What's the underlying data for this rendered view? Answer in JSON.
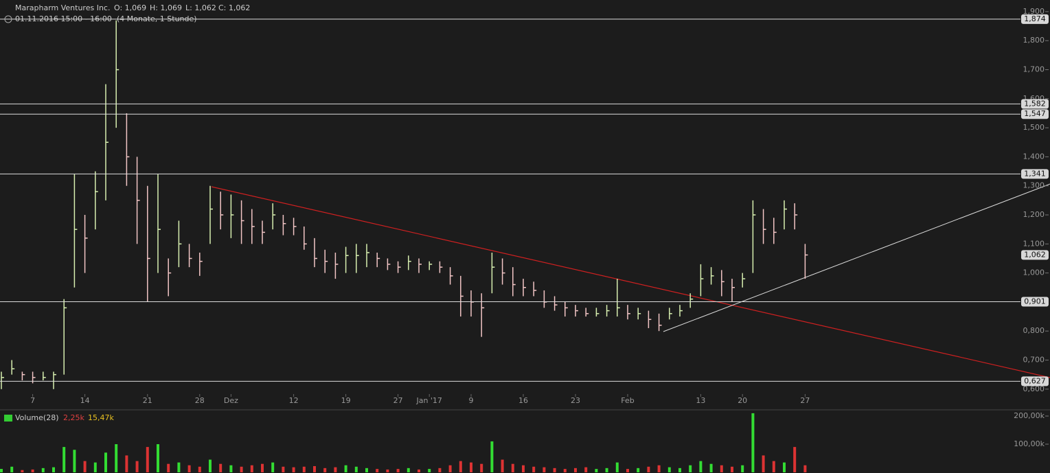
{
  "chart_data": [
    {
      "type": "hlc",
      "title": "Marapharm Ventures Inc.",
      "ohlc_text": [
        "O: 1,069",
        "H: 1,069",
        "L: 1,062",
        "C: 1,062"
      ],
      "subtitle": "01.11.2016 15:00 - 16:00",
      "period": "(4 Monate, 1 Stunde)",
      "categories": [
        null,
        null,
        null,
        "7",
        null,
        null,
        null,
        null,
        "14",
        null,
        null,
        null,
        null,
        null,
        "21",
        null,
        null,
        null,
        null,
        "28",
        null,
        null,
        "Dez",
        null,
        null,
        null,
        null,
        null,
        "12",
        null,
        null,
        null,
        null,
        "19",
        null,
        null,
        null,
        null,
        "27",
        null,
        null,
        "Jan '17",
        null,
        null,
        null,
        "9",
        null,
        null,
        null,
        null,
        "16",
        null,
        null,
        null,
        null,
        "23",
        null,
        null,
        null,
        null,
        "Feb",
        null,
        null,
        null,
        null,
        null,
        null,
        "13",
        null,
        null,
        null,
        "20",
        null,
        null,
        null,
        null,
        null,
        "27"
      ],
      "high": [
        0.66,
        0.7,
        0.66,
        0.66,
        0.66,
        0.66,
        0.91,
        1.34,
        1.2,
        1.35,
        1.65,
        1.87,
        1.55,
        1.4,
        1.3,
        1.34,
        1.05,
        1.18,
        1.1,
        1.07,
        1.3,
        1.28,
        1.27,
        1.25,
        1.22,
        1.18,
        1.24,
        1.2,
        1.19,
        1.16,
        1.12,
        1.08,
        1.07,
        1.09,
        1.1,
        1.1,
        1.07,
        1.05,
        1.04,
        1.06,
        1.05,
        1.04,
        1.04,
        1.02,
        0.99,
        0.94,
        0.93,
        1.07,
        1.05,
        1.02,
        0.98,
        0.97,
        0.94,
        0.92,
        0.9,
        0.89,
        0.88,
        0.88,
        0.89,
        0.98,
        0.89,
        0.88,
        0.87,
        0.86,
        0.88,
        0.89,
        0.93,
        1.03,
        1.02,
        1.01,
        0.98,
        1.0,
        1.25,
        1.22,
        1.19,
        1.25,
        1.24,
        1.1
      ],
      "low": [
        0.6,
        0.65,
        0.63,
        0.62,
        0.63,
        0.6,
        0.65,
        0.95,
        1.0,
        1.15,
        1.25,
        1.5,
        1.3,
        1.1,
        0.9,
        1.0,
        0.92,
        1.02,
        1.02,
        0.99,
        1.1,
        1.15,
        1.12,
        1.1,
        1.1,
        1.1,
        1.15,
        1.13,
        1.13,
        1.08,
        1.02,
        1.0,
        0.98,
        1.0,
        1.0,
        1.02,
        1.02,
        1.01,
        1.0,
        1.01,
        1.0,
        1.01,
        1.0,
        0.96,
        0.85,
        0.85,
        0.78,
        0.93,
        0.96,
        0.92,
        0.92,
        0.92,
        0.88,
        0.87,
        0.85,
        0.85,
        0.85,
        0.85,
        0.85,
        0.85,
        0.84,
        0.84,
        0.81,
        0.8,
        0.84,
        0.85,
        0.88,
        0.92,
        0.96,
        0.92,
        0.9,
        0.95,
        1.0,
        1.1,
        1.1,
        1.15,
        1.15,
        0.98
      ],
      "close": [
        0.64,
        0.67,
        0.65,
        0.64,
        0.64,
        0.65,
        0.88,
        1.15,
        1.12,
        1.28,
        1.45,
        1.7,
        1.4,
        1.25,
        1.05,
        1.15,
        1.0,
        1.1,
        1.05,
        1.04,
        1.22,
        1.2,
        1.2,
        1.18,
        1.16,
        1.14,
        1.2,
        1.17,
        1.16,
        1.1,
        1.05,
        1.04,
        1.03,
        1.06,
        1.06,
        1.07,
        1.05,
        1.03,
        1.02,
        1.04,
        1.03,
        1.03,
        1.02,
        0.99,
        0.92,
        0.9,
        0.88,
        1.02,
        1.0,
        0.96,
        0.95,
        0.94,
        0.9,
        0.89,
        0.88,
        0.87,
        0.86,
        0.86,
        0.87,
        0.88,
        0.86,
        0.86,
        0.84,
        0.82,
        0.86,
        0.87,
        0.91,
        0.98,
        0.99,
        0.97,
        0.95,
        0.98,
        1.2,
        1.15,
        1.14,
        1.22,
        1.2,
        1.062
      ],
      "up_color": "#d8f0b0",
      "down_color": "#f3c6c6",
      "ylim": [
        0.531,
        1.94
      ],
      "yticks": [
        {
          "value": 0.6,
          "label": "0,600"
        },
        {
          "value": 0.7,
          "label": "0,700"
        },
        {
          "value": 0.8,
          "label": "0,800"
        },
        {
          "value": 0.9,
          "label": "0,900"
        },
        {
          "value": 1.0,
          "label": "1,000"
        },
        {
          "value": 1.1,
          "label": "1,100"
        },
        {
          "value": 1.2,
          "label": "1,200"
        },
        {
          "value": 1.3,
          "label": "1,300"
        },
        {
          "value": 1.4,
          "label": "1,400"
        },
        {
          "value": 1.5,
          "label": "1,500"
        },
        {
          "value": 1.6,
          "label": "1,600"
        },
        {
          "value": 1.7,
          "label": "1,700"
        },
        {
          "value": 1.8,
          "label": "1,800"
        },
        {
          "value": 1.9,
          "label": "1,900"
        }
      ],
      "levels": [
        {
          "value": 1.874,
          "label": "1,874"
        },
        {
          "value": 1.582,
          "label": "1,582"
        },
        {
          "value": 1.547,
          "label": "1,547"
        },
        {
          "value": 1.341,
          "label": "1,341"
        },
        {
          "value": 0.901,
          "label": "0,901"
        },
        {
          "value": 0.627,
          "label": "0,627"
        }
      ],
      "last_price": {
        "value": 1.062,
        "label": "1,062"
      }
    },
    {
      "type": "bar",
      "title": "Volume(28)",
      "last_volume": "2,25k",
      "average": "15,47k",
      "values": [
        12,
        20,
        8,
        10,
        15,
        18,
        90,
        80,
        40,
        35,
        70,
        100,
        60,
        40,
        90,
        100,
        30,
        35,
        25,
        20,
        45,
        30,
        25,
        20,
        25,
        30,
        35,
        20,
        18,
        20,
        22,
        15,
        18,
        25,
        20,
        15,
        12,
        10,
        12,
        15,
        10,
        12,
        15,
        25,
        40,
        35,
        30,
        110,
        45,
        30,
        25,
        20,
        18,
        15,
        12,
        15,
        18,
        12,
        15,
        35,
        12,
        15,
        20,
        25,
        18,
        15,
        25,
        40,
        30,
        25,
        20,
        25,
        210,
        60,
        40,
        35,
        90,
        25
      ],
      "up_color": "#33dd33",
      "down_color": "#dd3333",
      "ylim": [
        0,
        222
      ],
      "yticks": [
        {
          "value": 100,
          "label": "100,00k"
        },
        {
          "value": 200,
          "label": "200,00k"
        }
      ]
    }
  ]
}
